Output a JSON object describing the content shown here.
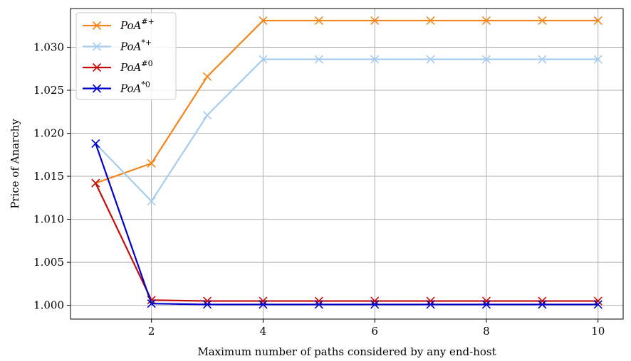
{
  "chart_data": {
    "type": "line",
    "title": "",
    "xlabel": "Maximum number of paths considered by any end-host",
    "ylabel": "Price of Anarchy",
    "x": [
      1,
      2,
      3,
      4,
      5,
      6,
      7,
      8,
      9,
      10
    ],
    "xlim": [
      0.55,
      10.45
    ],
    "ylim": [
      0.9984,
      1.0345
    ],
    "xticks": [
      2,
      4,
      6,
      8,
      10
    ],
    "xtick_labels": [
      "2",
      "4",
      "6",
      "8",
      "10"
    ],
    "yticks": [
      1.0,
      1.005,
      1.01,
      1.015,
      1.02,
      1.025,
      1.03
    ],
    "ytick_labels": [
      "1.000",
      "1.005",
      "1.010",
      "1.015",
      "1.020",
      "1.025",
      "1.030"
    ],
    "grid": true,
    "legend_position": "top-left",
    "marker": "x",
    "series": [
      {
        "name": "PoA#+",
        "label_base": "PoA",
        "label_sup": "#+",
        "color": "#f58518",
        "values": [
          1.0142,
          1.0165,
          1.0266,
          1.0331,
          1.0331,
          1.0331,
          1.0331,
          1.0331,
          1.0331,
          1.0331
        ]
      },
      {
        "name": "PoA*+",
        "label_base": "PoA",
        "label_sup": "*+",
        "color": "#a6cdf0",
        "values": [
          1.0188,
          1.0121,
          1.0221,
          1.0286,
          1.0286,
          1.0286,
          1.0286,
          1.0286,
          1.0286,
          1.0286
        ]
      },
      {
        "name": "PoA#0",
        "label_base": "PoA",
        "label_sup": "#0",
        "color": "#c40d0d",
        "values": [
          1.0142,
          1.0006,
          1.0005,
          1.0005,
          1.0005,
          1.0005,
          1.0005,
          1.0005,
          1.0005,
          1.0005
        ]
      },
      {
        "name": "PoA*0",
        "label_base": "PoA",
        "label_sup": "*0",
        "color": "#0000c8",
        "values": [
          1.0188,
          1.0002,
          1.0001,
          1.0001,
          1.0001,
          1.0001,
          1.0001,
          1.0001,
          1.0001,
          1.0001
        ]
      }
    ]
  }
}
